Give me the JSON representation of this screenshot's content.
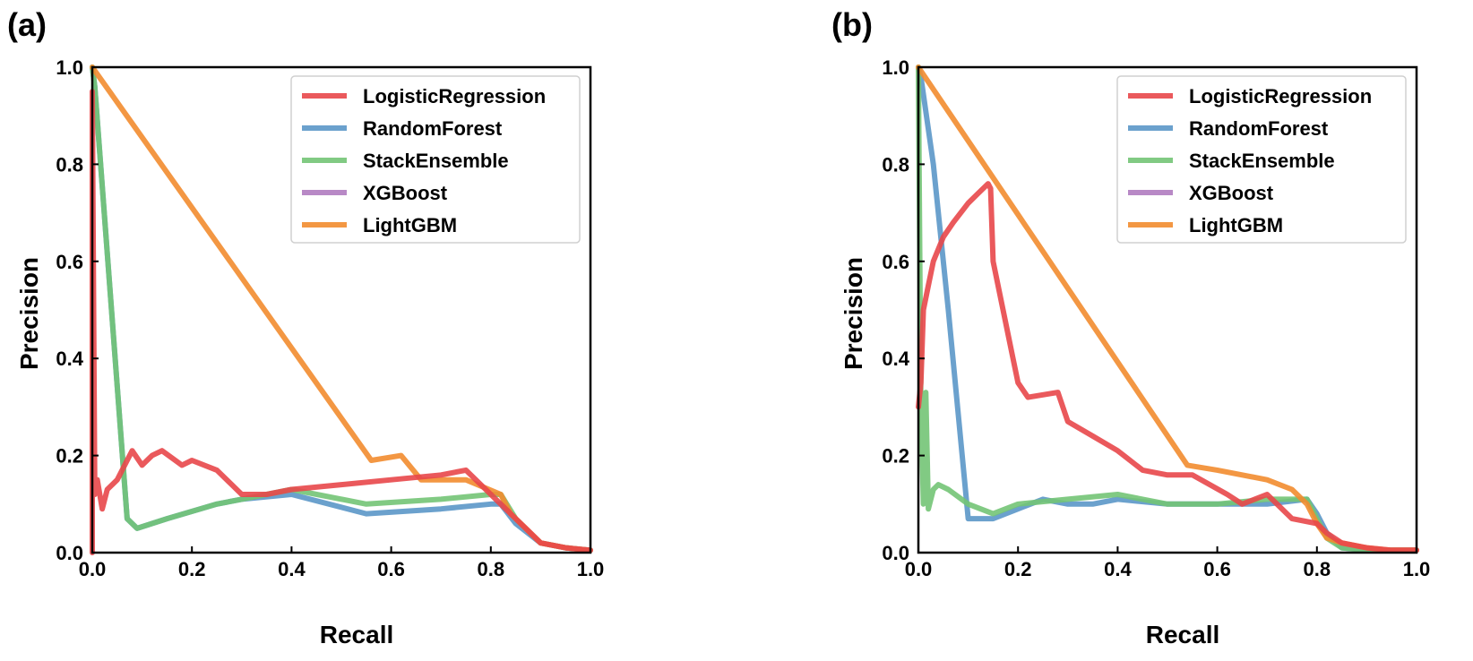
{
  "colors": {
    "LogisticRegression": "#e8474a",
    "RandomForest": "#5b97c8",
    "StackEnsemble": "#73c476",
    "XGBoost": "#b07cc0",
    "LightGBM": "#f28c2f"
  },
  "chart_data": [
    {
      "panel_label": "(a)",
      "type": "line",
      "xlabel": "Recall",
      "ylabel": "Precision",
      "xlim": [
        0,
        1
      ],
      "ylim": [
        0,
        1
      ],
      "xticks": [
        "0.0",
        "0.2",
        "0.4",
        "0.6",
        "0.8",
        "1.0"
      ],
      "yticks": [
        "0.0",
        "0.2",
        "0.4",
        "0.6",
        "0.8",
        "1.0"
      ],
      "legend_position": "top-right",
      "series": [
        {
          "name": "LogisticRegression",
          "x": [
            0,
            0,
            0.005,
            0.01,
            0.02,
            0.03,
            0.05,
            0.07,
            0.08,
            0.1,
            0.12,
            0.14,
            0.18,
            0.2,
            0.25,
            0.28,
            0.3,
            0.35,
            0.4,
            0.5,
            0.6,
            0.7,
            0.75,
            0.8,
            0.82,
            0.85,
            0.88,
            0.9,
            0.95,
            1.0
          ],
          "y": [
            0,
            0.95,
            0.12,
            0.15,
            0.09,
            0.13,
            0.15,
            0.19,
            0.21,
            0.18,
            0.2,
            0.21,
            0.18,
            0.19,
            0.17,
            0.14,
            0.12,
            0.12,
            0.13,
            0.14,
            0.15,
            0.16,
            0.17,
            0.12,
            0.1,
            0.07,
            0.04,
            0.02,
            0.01,
            0.005
          ]
        },
        {
          "name": "RandomForest",
          "x": [
            0,
            0.005,
            0.07,
            0.09,
            0.15,
            0.25,
            0.3,
            0.4,
            0.55,
            0.7,
            0.8,
            0.82,
            0.85,
            0.9,
            0.95,
            1.0
          ],
          "y": [
            1.0,
            0.96,
            0.07,
            0.05,
            0.07,
            0.1,
            0.11,
            0.12,
            0.08,
            0.09,
            0.1,
            0.1,
            0.06,
            0.02,
            0.01,
            0.005
          ]
        },
        {
          "name": "StackEnsemble",
          "x": [
            0,
            0.005,
            0.07,
            0.09,
            0.15,
            0.25,
            0.3,
            0.4,
            0.55,
            0.7,
            0.8,
            0.82,
            0.85,
            0.9,
            0.95,
            1.0
          ],
          "y": [
            1.0,
            0.96,
            0.07,
            0.05,
            0.07,
            0.1,
            0.11,
            0.13,
            0.1,
            0.11,
            0.12,
            0.12,
            0.07,
            0.02,
            0.01,
            0.005
          ]
        },
        {
          "name": "XGBoost",
          "x": [],
          "y": []
        },
        {
          "name": "LightGBM",
          "x": [
            0,
            0.56,
            0.62,
            0.66,
            0.75,
            0.82,
            0.84,
            0.88,
            0.9,
            0.95,
            1.0
          ],
          "y": [
            1.0,
            0.19,
            0.2,
            0.15,
            0.15,
            0.12,
            0.08,
            0.04,
            0.02,
            0.01,
            0.005
          ]
        }
      ]
    },
    {
      "panel_label": "(b)",
      "type": "line",
      "xlabel": "Recall",
      "ylabel": "Precision",
      "xlim": [
        0,
        1
      ],
      "ylim": [
        0,
        1
      ],
      "xticks": [
        "0.0",
        "0.2",
        "0.4",
        "0.6",
        "0.8",
        "1.0"
      ],
      "yticks": [
        "0.0",
        "0.2",
        "0.4",
        "0.6",
        "0.8",
        "1.0"
      ],
      "legend_position": "top-right",
      "series": [
        {
          "name": "LogisticRegression",
          "x": [
            0,
            0.005,
            0.01,
            0.02,
            0.03,
            0.05,
            0.07,
            0.1,
            0.12,
            0.14,
            0.145,
            0.15,
            0.17,
            0.19,
            0.2,
            0.22,
            0.28,
            0.3,
            0.35,
            0.4,
            0.45,
            0.5,
            0.55,
            0.62,
            0.65,
            0.7,
            0.72,
            0.75,
            0.8,
            0.82,
            0.85,
            0.9,
            0.95,
            1.0
          ],
          "y": [
            0.3,
            0.35,
            0.5,
            0.55,
            0.6,
            0.65,
            0.68,
            0.72,
            0.74,
            0.76,
            0.75,
            0.6,
            0.5,
            0.4,
            0.35,
            0.32,
            0.33,
            0.27,
            0.24,
            0.21,
            0.17,
            0.16,
            0.16,
            0.12,
            0.1,
            0.12,
            0.1,
            0.07,
            0.06,
            0.04,
            0.02,
            0.01,
            0.005,
            0.005
          ]
        },
        {
          "name": "RandomForest",
          "x": [
            0,
            0.005,
            0.03,
            0.06,
            0.1,
            0.15,
            0.2,
            0.25,
            0.3,
            0.35,
            0.4,
            0.5,
            0.6,
            0.7,
            0.78,
            0.8,
            0.82,
            0.85,
            0.9,
            1.0
          ],
          "y": [
            1.0,
            0.98,
            0.8,
            0.5,
            0.07,
            0.07,
            0.09,
            0.11,
            0.1,
            0.1,
            0.11,
            0.1,
            0.1,
            0.1,
            0.11,
            0.08,
            0.04,
            0.01,
            0.005,
            0.005
          ]
        },
        {
          "name": "StackEnsemble",
          "x": [
            0,
            0.005,
            0.01,
            0.015,
            0.02,
            0.03,
            0.04,
            0.06,
            0.1,
            0.15,
            0.2,
            0.3,
            0.4,
            0.5,
            0.6,
            0.7,
            0.78,
            0.8,
            0.82,
            0.85,
            0.9,
            1.0
          ],
          "y": [
            1.0,
            0.3,
            0.1,
            0.33,
            0.09,
            0.13,
            0.14,
            0.13,
            0.1,
            0.08,
            0.1,
            0.11,
            0.12,
            0.1,
            0.1,
            0.11,
            0.11,
            0.07,
            0.03,
            0.01,
            0.005,
            0.005
          ]
        },
        {
          "name": "XGBoost",
          "x": [],
          "y": []
        },
        {
          "name": "LightGBM",
          "x": [
            0,
            0.54,
            0.6,
            0.65,
            0.7,
            0.75,
            0.78,
            0.8,
            0.82,
            0.85,
            0.9,
            0.95,
            1.0
          ],
          "y": [
            1.0,
            0.18,
            0.17,
            0.16,
            0.15,
            0.13,
            0.1,
            0.06,
            0.03,
            0.02,
            0.01,
            0.005,
            0.005
          ]
        }
      ]
    }
  ]
}
